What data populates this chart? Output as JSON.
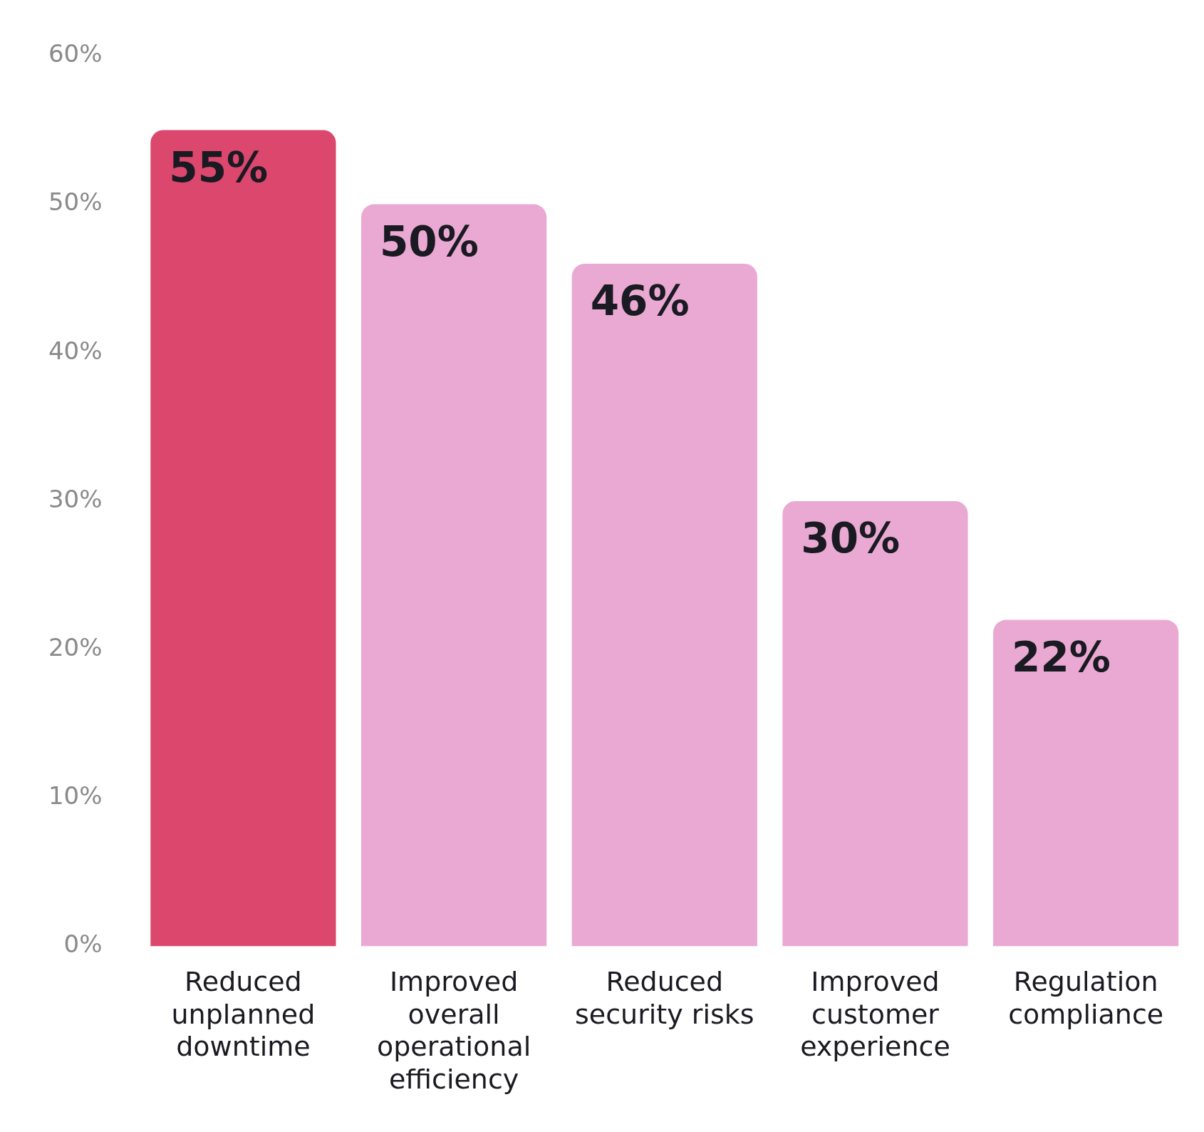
{
  "chart_data": {
    "type": "bar",
    "categories": [
      "Reduced unplanned downtime",
      "Improved overall operational efficiency",
      "Reduced security risks",
      "Improved customer experience",
      "Regulation compliance"
    ],
    "values": [
      55,
      50,
      46,
      30,
      22
    ],
    "value_labels": [
      "55%",
      "50%",
      "46%",
      "30%",
      "22%"
    ],
    "colors": [
      "#dc476e",
      "#eaa9d3",
      "#eaa9d3",
      "#eaa9d3",
      "#eaa9d3"
    ],
    "ylim": [
      0,
      60
    ],
    "yticks": [
      {
        "value": 0,
        "label": "0%"
      },
      {
        "value": 10,
        "label": "10%"
      },
      {
        "value": 20,
        "label": "20%"
      },
      {
        "value": 30,
        "label": "30%"
      },
      {
        "value": 40,
        "label": "40%"
      },
      {
        "value": 50,
        "label": "50%"
      },
      {
        "value": 60,
        "label": "60%"
      }
    ],
    "grid": false,
    "legend": false
  }
}
